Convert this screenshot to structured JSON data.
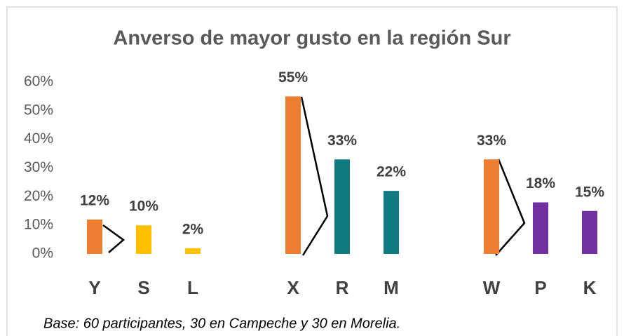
{
  "chart_data": {
    "type": "bar",
    "title": "Anverso de mayor gusto en la región Sur",
    "categories": [
      "Y",
      "S",
      "L",
      "X",
      "R",
      "M",
      "W",
      "P",
      "K"
    ],
    "values": [
      12,
      10,
      2,
      55,
      33,
      22,
      33,
      18,
      15
    ],
    "value_labels": [
      "12%",
      "10%",
      "2%",
      "55%",
      "33%",
      "22%",
      "33%",
      "18%",
      "15%"
    ],
    "colors": [
      "#ED7D31",
      "#FFC000",
      "#FFC000",
      "#ED7D31",
      "#0F7B80",
      "#0F7B80",
      "#ED7D31",
      "#7030A0",
      "#7030A0"
    ],
    "ylim": [
      0,
      60
    ],
    "yticks": [
      {
        "value": 0,
        "label": "0%"
      },
      {
        "value": 10,
        "label": "10%"
      },
      {
        "value": 20,
        "label": "20%"
      },
      {
        "value": 30,
        "label": "30%"
      },
      {
        "value": 40,
        "label": "40%"
      },
      {
        "value": 50,
        "label": "50%"
      },
      {
        "value": 60,
        "label": "60%"
      }
    ],
    "grid": false,
    "note": "Base: 60 participantes, 30 en Campeche y 30 en Morelia."
  }
}
